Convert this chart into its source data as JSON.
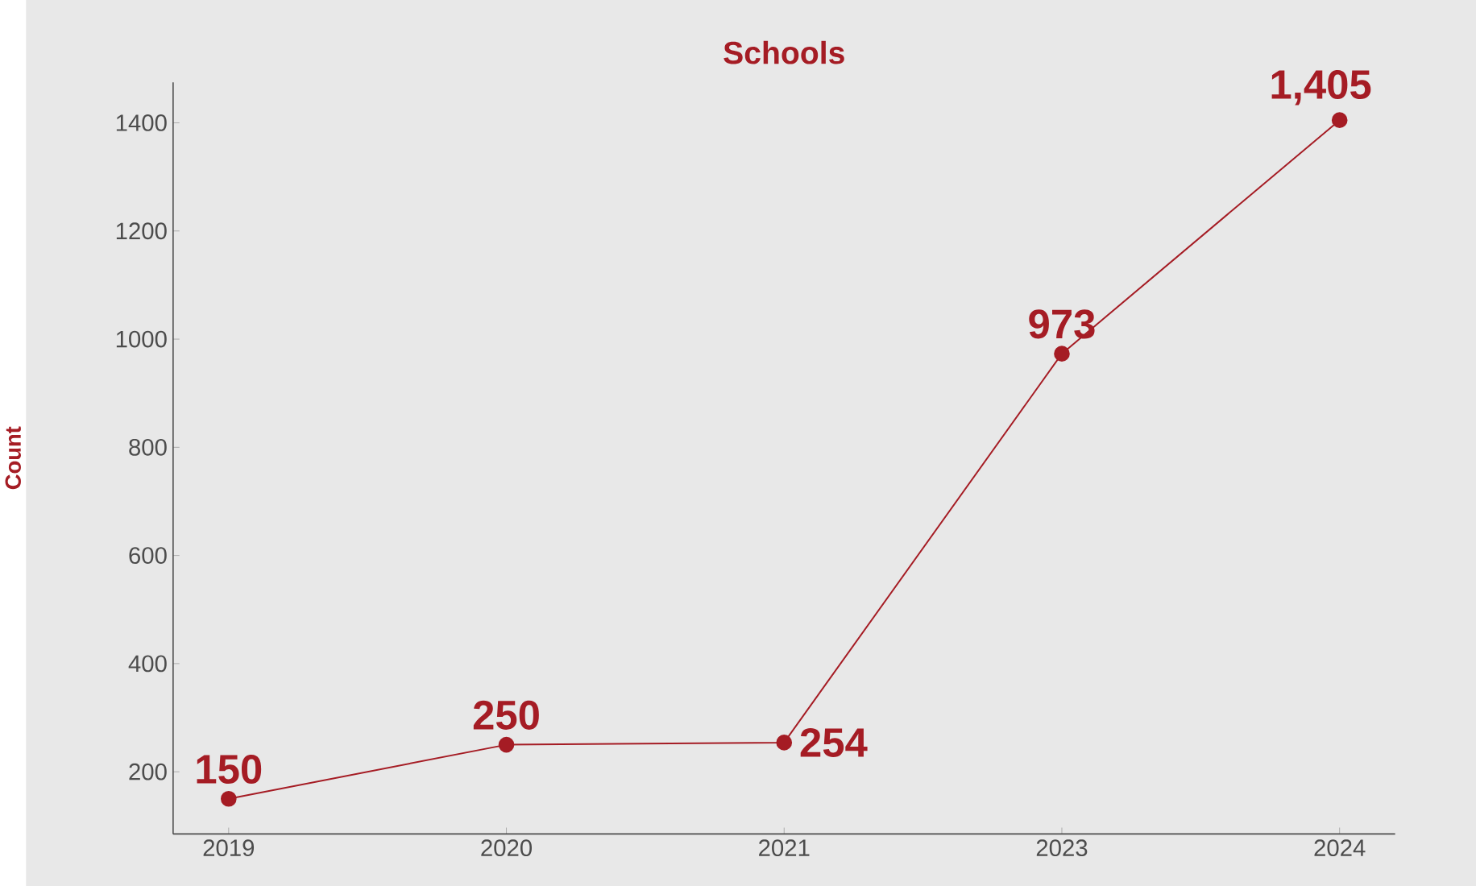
{
  "chart_data": {
    "type": "line",
    "title": "Schools",
    "ylabel": "Count",
    "categories": [
      "2019",
      "2020",
      "2021",
      "2023",
      "2024"
    ],
    "series": [
      {
        "color": "#a51c24",
        "values": [
          150,
          250,
          254,
          973,
          1405
        ],
        "value_labels": [
          "150",
          "250",
          "254",
          "973",
          "1,405"
        ]
      }
    ],
    "ylim": [
      85,
      1475
    ],
    "yticks": [
      200,
      400,
      600,
      800,
      1000,
      1200,
      1400
    ],
    "marker": "circle",
    "line_style": "solid"
  }
}
